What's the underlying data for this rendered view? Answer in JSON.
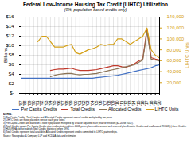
{
  "chart_data": {
    "type": "line",
    "title": "Federal Low-Income Housing Tax Credit (LIHTC) Utilization",
    "subtitle": "(9%, population-based credits only)",
    "ylabel": "Billions",
    "y2label": "LIHTC Units",
    "x": [
      1987,
      1988,
      1989,
      1990,
      1991,
      1992,
      1993,
      1994,
      1995,
      1996,
      1997,
      1998,
      1999,
      2000,
      2001,
      2002,
      2003,
      2004,
      2005,
      2006,
      2007,
      2008,
      2009,
      2010,
      2011,
      2012,
      2013,
      2014,
      2015,
      2016,
      2017,
      2018,
      2019,
      2020
    ],
    "xlim": [
      1987,
      2020
    ],
    "xticks": [
      {
        "value": 1987,
        "label": "'87"
      },
      {
        "value": 1988,
        "label": "'88"
      },
      {
        "value": 1989,
        "label": "'89"
      },
      {
        "value": 1990,
        "label": "'90"
      },
      {
        "value": 1991,
        "label": "'91"
      },
      {
        "value": 1992,
        "label": "'92"
      },
      {
        "value": 1993,
        "label": "'93"
      },
      {
        "value": 1994,
        "label": "'94"
      },
      {
        "value": 1995,
        "label": "'95"
      },
      {
        "value": 1996,
        "label": "'96"
      },
      {
        "value": 1997,
        "label": "'97"
      },
      {
        "value": 1998,
        "label": "'98"
      },
      {
        "value": 1999,
        "label": "'99"
      },
      {
        "value": 2000,
        "label": "'00"
      },
      {
        "value": 2001,
        "label": "'01"
      },
      {
        "value": 2002,
        "label": "'02"
      },
      {
        "value": 2003,
        "label": "'03"
      },
      {
        "value": 2004,
        "label": "'04"
      },
      {
        "value": 2005,
        "label": "'05"
      },
      {
        "value": 2006,
        "label": "'06"
      },
      {
        "value": 2007,
        "label": "'07"
      },
      {
        "value": 2008,
        "label": "'08"
      },
      {
        "value": 2009,
        "label": "'09"
      },
      {
        "value": 2010,
        "label": "'10"
      },
      {
        "value": 2011,
        "label": "'11"
      },
      {
        "value": 2012,
        "label": "'12"
      },
      {
        "value": 2013,
        "label": "'13"
      },
      {
        "value": 2014,
        "label": "'14"
      },
      {
        "value": 2015,
        "label": "'15"
      },
      {
        "value": 2016,
        "label": "'16"
      },
      {
        "value": 2017,
        "label": "'17"
      },
      {
        "value": 2018,
        "label": "'18"
      },
      {
        "value": 2019,
        "label": "'19"
      },
      {
        "value": 2020,
        "label": "'20"
      }
    ],
    "ylim": [
      0,
      16
    ],
    "yticks": [
      {
        "value": 0,
        "label": "$-"
      },
      {
        "value": 2,
        "label": "$2"
      },
      {
        "value": 4,
        "label": "$4"
      },
      {
        "value": 6,
        "label": "$6"
      },
      {
        "value": 8,
        "label": "$8"
      },
      {
        "value": 10,
        "label": "$10"
      },
      {
        "value": 12,
        "label": "$12"
      },
      {
        "value": 14,
        "label": "$14"
      },
      {
        "value": 16,
        "label": "$16"
      }
    ],
    "y2lim": [
      0,
      140000
    ],
    "y2ticks": [
      {
        "value": 20000,
        "label": "20,000"
      },
      {
        "value": 40000,
        "label": "40,000"
      },
      {
        "value": 60000,
        "label": "60,000"
      },
      {
        "value": 80000,
        "label": "80,000"
      },
      {
        "value": 100000,
        "label": "100,000"
      },
      {
        "value": 120000,
        "label": "120,000"
      },
      {
        "value": 140000,
        "label": "140,000"
      }
    ],
    "grid": true,
    "legend": "bottom",
    "series": [
      {
        "name": "Per Capita Credits",
        "color": "#4472c4",
        "values": [
          3.2,
          3.2,
          3.2,
          3.2,
          3.2,
          3.2,
          3.2,
          3.2,
          3.2,
          3.2,
          3.2,
          3.2,
          3.2,
          3.2,
          3.2,
          3.2,
          3.2,
          3.2,
          3.3,
          3.4,
          3.5,
          3.6,
          3.7,
          3.8,
          4.0,
          4.2,
          4.4,
          4.6,
          4.8,
          5.0,
          5.2,
          5.4,
          5.8,
          6.0
        ]
      },
      {
        "name": "Total Credits",
        "color": "#c0392b",
        "values": [
          null,
          null,
          null,
          null,
          null,
          null,
          null,
          4.8,
          5.0,
          5.1,
          5.1,
          5.2,
          5.3,
          5.0,
          4.8,
          4.8,
          4.8,
          4.9,
          5.0,
          5.2,
          5.4,
          5.6,
          5.8,
          5.8,
          5.6,
          5.5,
          5.8,
          6.2,
          6.8,
          7.2,
          13.5,
          7.5,
          7.2,
          7.0
        ]
      },
      {
        "name": "Allocated Credits",
        "color": "#8b7355",
        "values": [
          null,
          null,
          null,
          null,
          null,
          null,
          null,
          3.5,
          3.8,
          4.0,
          4.1,
          4.2,
          4.2,
          4.0,
          3.9,
          4.0,
          4.0,
          4.1,
          4.2,
          4.4,
          4.6,
          4.8,
          5.0,
          5.2,
          5.4,
          5.6,
          5.8,
          6.0,
          6.5,
          7.0,
          13.0,
          7.2,
          7.0,
          6.8
        ]
      },
      {
        "name": "LIHTC Units",
        "color": "#d4a017",
        "axis": "y2",
        "values": [
          null,
          null,
          null,
          null,
          95000,
          105000,
          105000,
          95000,
          85000,
          85000,
          85000,
          88000,
          90000,
          75000,
          72000,
          76000,
          80000,
          82000,
          85000,
          90000,
          88000,
          90000,
          90000,
          100000,
          100000,
          95000,
          90000,
          95000,
          100000,
          105000,
          120000,
          80000,
          70000,
          65000
        ]
      }
    ],
    "annotations": [
      "NOTES:",
      "1) Per Capita Credits, Total Credits and Allocated Credits represent annual credits multiplied by ten years.",
      "2) LIHTC Units are those placed in service each year listed.",
      "3) Per Capita Credits are based on a state's population multiplied by a factor adjusted each year for inflation ($2.20 for 2012).",
      "4) Total Credits equals Per Capita Credits plus unallocated credits in 2001 years plus credits unused and returned plus Disaster Credits and unallocated IRC 42(e) Zone Credits.",
      "5) HUD/RHA did not publish Total Credits statistics before 1994.",
      "6) Total Credits represent total available; Allocated Credits represent credits committed to LIHTC partnerships.",
      "Source: Novogradac & Company LLP and HCD&A data and estimates"
    ]
  }
}
